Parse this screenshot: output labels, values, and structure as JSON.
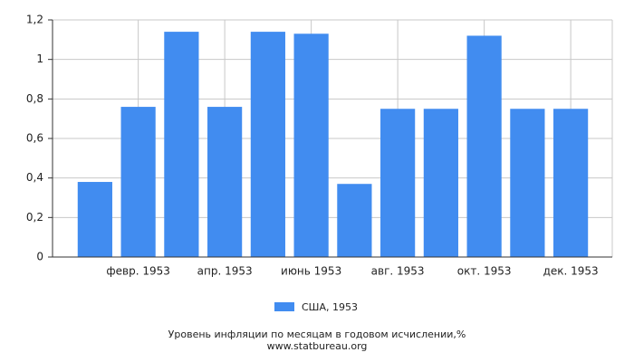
{
  "chart_data": {
    "type": "bar",
    "categories": [
      null,
      "февр. 1953",
      null,
      "апр. 1953",
      null,
      "июнь 1953",
      null,
      "авг. 1953",
      null,
      "окт. 1953",
      null,
      "дек. 1953"
    ],
    "series": [
      {
        "name": "США, 1953",
        "color": "#418cf0",
        "values": [
          0.38,
          0.76,
          1.14,
          0.76,
          1.14,
          1.13,
          0.37,
          0.75,
          0.75,
          1.12,
          0.75,
          0.75
        ]
      }
    ],
    "ylim": [
      0,
      1.2
    ],
    "yticks": [
      0,
      {
        "value": 0.2,
        "label": "0,2"
      },
      {
        "value": 0.4,
        "label": "0,4"
      },
      {
        "value": 0.6,
        "label": "0,6"
      },
      {
        "value": 0.8,
        "label": "0,8"
      },
      1,
      {
        "value": 1.2,
        "label": "1,2"
      }
    ],
    "grid": true,
    "caption": "Уровень инфляции по месяцам в годовом исчислении,%",
    "source": "www.statbureau.org"
  }
}
